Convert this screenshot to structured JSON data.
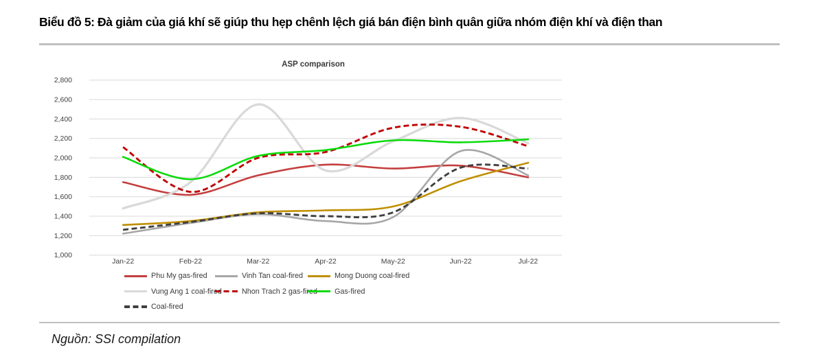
{
  "figure": {
    "title": "Biểu đồ 5: Đà giảm của giá khí sẽ giúp thu hẹp chênh lệch giá bán điện bình quân giữa nhóm điện khí và điện than"
  },
  "source": {
    "text": "Nguồn: SSI compilation"
  },
  "chart_data": {
    "type": "line",
    "title": "ASP comparison",
    "categories": [
      "Jan-22",
      "Feb-22",
      "Mar-22",
      "Apr-22",
      "May-22",
      "Jun-22",
      "Jul-22"
    ],
    "ylim": [
      1000,
      2800
    ],
    "ytick_step": 200,
    "grid": true,
    "legend_position": "bottom",
    "series": [
      {
        "name": "Phu My gas-fired",
        "color": "#c43e3e",
        "style": "solid",
        "values": [
          1750,
          1620,
          1820,
          1930,
          1890,
          1920,
          1800
        ]
      },
      {
        "name": "Vinh Tan coal-fired",
        "color": "#a6a6a6",
        "style": "solid",
        "values": [
          1220,
          1330,
          1420,
          1350,
          1390,
          2070,
          1820
        ]
      },
      {
        "name": "Mong Duong coal-fired",
        "color": "#bf8f00",
        "style": "solid",
        "values": [
          1310,
          1350,
          1440,
          1460,
          1500,
          1760,
          1950
        ]
      },
      {
        "name": "Vung Ang 1 coal-fired",
        "color": "#d9d9d9",
        "style": "solid",
        "values": [
          1480,
          1750,
          2550,
          1870,
          2170,
          2410,
          2150
        ]
      },
      {
        "name": "Nhon Trach 2 gas-fired",
        "color": "#c00000",
        "style": "dashed",
        "values": [
          2110,
          1650,
          2000,
          2060,
          2310,
          2320,
          2120
        ]
      },
      {
        "name": "Gas-fired",
        "color": "#0bdb0b",
        "style": "solid",
        "values": [
          2010,
          1780,
          2020,
          2080,
          2180,
          2160,
          2190
        ]
      },
      {
        "name": "Coal-fired",
        "color": "#404040",
        "style": "dashed",
        "values": [
          1260,
          1340,
          1430,
          1400,
          1440,
          1900,
          1890
        ]
      }
    ]
  }
}
